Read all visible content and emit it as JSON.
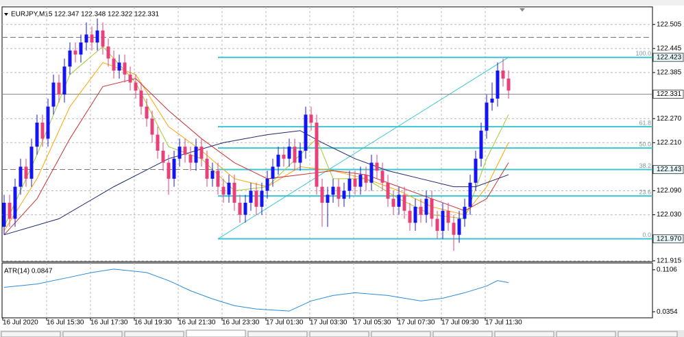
{
  "header": "EURJPY,M15  122.347 122.348 122.322 122.331",
  "chart_data": [
    {
      "type": "candlestick",
      "up_color": "#1414f0",
      "down_color": "#e8407a",
      "ylim": [
        121.913,
        122.549
      ],
      "yticks": [
        122.505,
        122.445,
        122.385,
        {
          "value": 122.27,
          "label": "122.270"
        },
        {
          "value": 122.21,
          "label": "122.210"
        },
        {
          "value": 122.09,
          "label": "122.090"
        },
        {
          "value": 122.03,
          "label": "122.030"
        },
        121.915
      ],
      "grid": true,
      "categories": [
        "16 Jul 2020",
        "16 Jul 15:30",
        "16 Jul 17:30",
        "16 Jul 19:30",
        "16 Jul 21:30",
        "16 Jul 23:30",
        "17 Jul 01:30",
        "17 Jul 03:30",
        "17 Jul 05:30",
        "17 Jul 07:30",
        "17 Jul 09:30",
        "17 Jul 11:30"
      ],
      "candles": [
        [
          122.0,
          122.08,
          121.98,
          122.06
        ],
        [
          122.06,
          122.08,
          122.0,
          122.02
        ],
        [
          122.02,
          122.12,
          122.0,
          122.1
        ],
        [
          122.1,
          122.17,
          122.08,
          122.15
        ],
        [
          122.15,
          122.17,
          122.1,
          122.12
        ],
        [
          122.12,
          122.22,
          122.1,
          122.2
        ],
        [
          122.2,
          122.28,
          122.18,
          122.26
        ],
        [
          122.26,
          122.28,
          122.2,
          122.22
        ],
        [
          122.22,
          122.32,
          122.2,
          122.3
        ],
        [
          122.3,
          122.38,
          122.28,
          122.36
        ],
        [
          122.36,
          122.38,
          122.31,
          122.33
        ],
        [
          122.33,
          122.42,
          122.31,
          122.4
        ],
        [
          122.4,
          122.46,
          122.38,
          122.44
        ],
        [
          122.44,
          122.46,
          122.41,
          122.43
        ],
        [
          122.43,
          122.48,
          122.41,
          122.46
        ],
        [
          122.46,
          122.51,
          122.44,
          122.48
        ],
        [
          122.48,
          122.5,
          122.44,
          122.46
        ],
        [
          122.46,
          122.52,
          122.44,
          122.49
        ],
        [
          122.49,
          122.51,
          122.43,
          122.45
        ],
        [
          122.45,
          122.47,
          122.4,
          122.42
        ],
        [
          122.42,
          122.44,
          122.37,
          122.39
        ],
        [
          122.39,
          122.43,
          122.37,
          122.41
        ],
        [
          122.41,
          122.43,
          122.36,
          122.38
        ],
        [
          122.38,
          122.4,
          122.34,
          122.36
        ],
        [
          122.36,
          122.38,
          122.32,
          122.34
        ],
        [
          122.34,
          122.36,
          122.28,
          122.3
        ],
        [
          122.3,
          122.32,
          122.25,
          122.27
        ],
        [
          122.27,
          122.29,
          122.21,
          122.23
        ],
        [
          122.23,
          122.25,
          122.17,
          122.19
        ],
        [
          122.19,
          122.21,
          122.14,
          122.16
        ],
        [
          122.16,
          122.18,
          122.08,
          122.12
        ],
        [
          122.12,
          122.19,
          122.1,
          122.17
        ],
        [
          122.17,
          122.22,
          122.15,
          122.2
        ],
        [
          122.2,
          122.22,
          122.16,
          122.18
        ],
        [
          122.18,
          122.2,
          122.14,
          122.16
        ],
        [
          122.16,
          122.22,
          122.14,
          122.2
        ],
        [
          122.2,
          122.22,
          122.15,
          122.17
        ],
        [
          122.17,
          122.19,
          122.1,
          122.12
        ],
        [
          122.12,
          122.16,
          122.1,
          122.14
        ],
        [
          122.14,
          122.16,
          122.08,
          122.1
        ],
        [
          122.1,
          122.12,
          122.06,
          122.08
        ],
        [
          122.08,
          122.13,
          122.06,
          122.11
        ],
        [
          122.11,
          122.13,
          122.04,
          122.06
        ],
        [
          122.06,
          122.08,
          122.01,
          122.03
        ],
        [
          122.03,
          122.08,
          122.01,
          122.06
        ],
        [
          122.06,
          122.11,
          122.04,
          122.09
        ],
        [
          122.09,
          122.11,
          122.03,
          122.05
        ],
        [
          122.05,
          122.11,
          122.03,
          122.09
        ],
        [
          122.09,
          122.14,
          122.07,
          122.12
        ],
        [
          122.12,
          122.17,
          122.1,
          122.15
        ],
        [
          122.15,
          122.2,
          122.13,
          122.18
        ],
        [
          122.18,
          122.2,
          122.15,
          122.17
        ],
        [
          122.17,
          122.22,
          122.15,
          122.2
        ],
        [
          122.2,
          122.22,
          122.14,
          122.16
        ],
        [
          122.16,
          122.21,
          122.14,
          122.19
        ],
        [
          122.19,
          122.3,
          122.17,
          122.28
        ],
        [
          122.28,
          122.3,
          122.24,
          122.26
        ],
        [
          122.26,
          122.28,
          122.08,
          122.1
        ],
        [
          122.1,
          122.12,
          122.0,
          122.06
        ],
        [
          122.06,
          122.1,
          122.0,
          122.08
        ],
        [
          122.08,
          122.12,
          122.06,
          122.1
        ],
        [
          122.1,
          122.12,
          122.05,
          122.07
        ],
        [
          122.07,
          122.11,
          122.05,
          122.09
        ],
        [
          122.09,
          122.14,
          122.07,
          122.12
        ],
        [
          122.12,
          122.14,
          122.08,
          122.1
        ],
        [
          122.1,
          122.15,
          122.08,
          122.13
        ],
        [
          122.13,
          122.15,
          122.09,
          122.11
        ],
        [
          122.11,
          122.18,
          122.09,
          122.16
        ],
        [
          122.16,
          122.18,
          122.12,
          122.14
        ],
        [
          122.14,
          122.16,
          122.09,
          122.11
        ],
        [
          122.11,
          122.13,
          122.05,
          122.07
        ],
        [
          122.07,
          122.09,
          122.03,
          122.05
        ],
        [
          122.05,
          122.1,
          122.03,
          122.08
        ],
        [
          122.08,
          122.1,
          122.02,
          122.04
        ],
        [
          122.04,
          122.06,
          121.99,
          122.01
        ],
        [
          122.01,
          122.07,
          121.99,
          122.05
        ],
        [
          122.05,
          122.07,
          122.01,
          122.03
        ],
        [
          122.03,
          122.09,
          122.01,
          122.07
        ],
        [
          122.07,
          122.09,
          122.0,
          122.02
        ],
        [
          122.02,
          122.04,
          121.97,
          121.99
        ],
        [
          121.99,
          122.06,
          121.97,
          122.04
        ],
        [
          122.04,
          122.06,
          121.99,
          122.01
        ],
        [
          122.01,
          122.03,
          121.94,
          121.98
        ],
        [
          121.98,
          122.04,
          121.96,
          122.02
        ],
        [
          122.02,
          122.07,
          122.0,
          122.05
        ],
        [
          122.05,
          122.13,
          122.03,
          122.11
        ],
        [
          122.11,
          122.19,
          122.09,
          122.17
        ],
        [
          122.17,
          122.26,
          122.15,
          122.24
        ],
        [
          122.24,
          122.33,
          122.22,
          122.31
        ],
        [
          122.31,
          122.36,
          122.29,
          122.32
        ],
        [
          122.32,
          122.41,
          122.3,
          122.39
        ],
        [
          122.39,
          122.42,
          122.35,
          122.37
        ],
        [
          122.37,
          122.39,
          122.32,
          122.34
        ]
      ],
      "series": [
        {
          "color": "#9acd32",
          "x": [
            0,
            6,
            12,
            18,
            24,
            30,
            36,
            42,
            48,
            54,
            57,
            60,
            66,
            72,
            78,
            84,
            88,
            92
          ],
          "values": [
            122.0,
            122.18,
            122.38,
            122.45,
            122.36,
            122.2,
            122.17,
            122.09,
            122.1,
            122.18,
            122.22,
            122.12,
            122.12,
            122.07,
            122.03,
            122.02,
            122.17,
            122.28
          ]
        },
        {
          "color": "#ffa500",
          "x": [
            0,
            6,
            12,
            18,
            24,
            30,
            36,
            42,
            48,
            54,
            60,
            66,
            72,
            78,
            84,
            88,
            92
          ],
          "values": [
            121.99,
            122.12,
            122.3,
            122.41,
            122.38,
            122.25,
            122.19,
            122.12,
            122.1,
            122.15,
            122.14,
            122.12,
            122.09,
            122.05,
            122.03,
            122.1,
            122.21
          ]
        },
        {
          "color": "#c83232",
          "x": [
            0,
            6,
            12,
            18,
            24,
            30,
            36,
            42,
            48,
            54,
            60,
            66,
            72,
            78,
            84,
            88,
            92
          ],
          "values": [
            121.98,
            122.07,
            122.22,
            122.35,
            122.37,
            122.29,
            122.22,
            122.16,
            122.12,
            122.13,
            122.14,
            122.13,
            122.1,
            122.07,
            122.04,
            122.07,
            122.16
          ]
        },
        {
          "color": "#1c2670",
          "x": [
            0,
            10,
            20,
            30,
            40,
            48,
            54,
            58,
            64,
            70,
            76,
            82,
            86,
            92
          ],
          "values": [
            121.98,
            122.02,
            122.1,
            122.17,
            122.21,
            122.23,
            122.24,
            122.21,
            122.17,
            122.14,
            122.12,
            122.1,
            122.1,
            122.13
          ]
        }
      ],
      "fib_color": "#3cc4d0",
      "fib_anchor": {
        "x": [
          39,
          92
        ],
        "price": [
          121.97,
          122.423
        ]
      },
      "fib_levels": [
        {
          "label": "100.0",
          "price": 122.423
        },
        {
          "label": "61.8",
          "price": 122.25
        },
        {
          "label": "50.0",
          "price": 122.1965
        },
        {
          "label": "38.2",
          "price": 122.143
        },
        {
          "label": "23.6",
          "price": 122.077
        },
        {
          "label": "0.0",
          "price": 121.97
        }
      ],
      "hlines": [
        122.473,
        122.143
      ],
      "current_price": 122.331,
      "price_labels": [
        122.423,
        122.143,
        {
          "value": 121.97,
          "label": "121.970"
        }
      ]
    },
    {
      "type": "line",
      "title": "ATR(14) 0.0847",
      "color": "#2a8ad8",
      "ylim": [
        0.0245,
        0.1227
      ],
      "yticks": [
        0.1106,
        0.0354
      ],
      "x": [
        0,
        6,
        12,
        16,
        20,
        26,
        30,
        34,
        38,
        42,
        46,
        52,
        56,
        60,
        64,
        70,
        76,
        80,
        84,
        88,
        90,
        92
      ],
      "values": [
        0.0791,
        0.0851,
        0.0973,
        0.1057,
        0.1118,
        0.1057,
        0.0912,
        0.073,
        0.0584,
        0.0463,
        0.0403,
        0.0366,
        0.0548,
        0.0645,
        0.0694,
        0.0645,
        0.0548,
        0.0597,
        0.0694,
        0.0815,
        0.0912,
        0.0876
      ]
    }
  ]
}
